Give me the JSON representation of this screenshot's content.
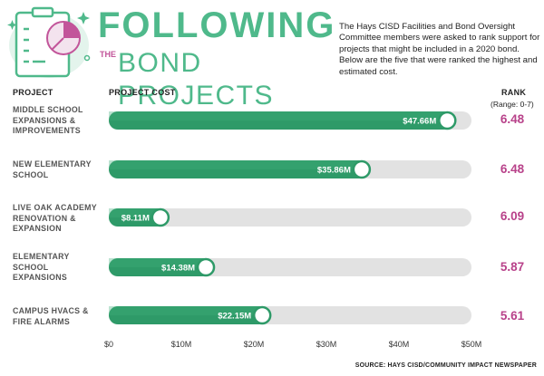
{
  "header": {
    "title_main": "FOLLOWING",
    "title_the": "THE",
    "title_sub": "BOND PROJECTS",
    "intro": "The Hays CISD Facilities and Bond Oversight Committee members were asked to rank support for projects that might be included in a 2020 bond. Below are the five that were ranked the highest and estimated cost."
  },
  "columns": {
    "project": "PROJECT",
    "cost": "PROJECT COST",
    "rank": "RANK",
    "rank_range": "(Range: 0-7)"
  },
  "chart_data": {
    "type": "bar",
    "orientation": "horizontal",
    "categories": [
      "MIDDLE SCHOOL EXPANSIONS & IMPROVEMENTS",
      "NEW ELEMENTARY SCHOOL",
      "LIVE OAK ACADEMY RENOVATION & EXPANSION",
      "ELEMENTARY SCHOOL EXPANSIONS",
      "CAMPUS HVACS & FIRE ALARMS"
    ],
    "values": [
      47.66,
      35.86,
      8.11,
      14.38,
      22.15
    ],
    "value_labels": [
      "$47.66M",
      "$35.86M",
      "$8.11M",
      "$14.38M",
      "$22.15M"
    ],
    "ranks": [
      "6.48",
      "6.48",
      "6.09",
      "5.87",
      "5.61"
    ],
    "xlim": [
      0,
      50
    ],
    "ticks": [
      0,
      10,
      20,
      30,
      40,
      50
    ],
    "tick_labels": [
      "$0",
      "$10M",
      "$20M",
      "$30M",
      "$40M",
      "$50M"
    ],
    "grid": false,
    "colors": {
      "bar": "#2e9a68",
      "bar_light": "#3fae7b",
      "track": "#e2e2e2",
      "rank": "#b8428a",
      "accent": "#4fb98b"
    }
  },
  "icons": {
    "header": "clipboard-chart-icon"
  },
  "source": "SOURCE: HAYS CISD/COMMUNITY IMPACT NEWSPAPER"
}
